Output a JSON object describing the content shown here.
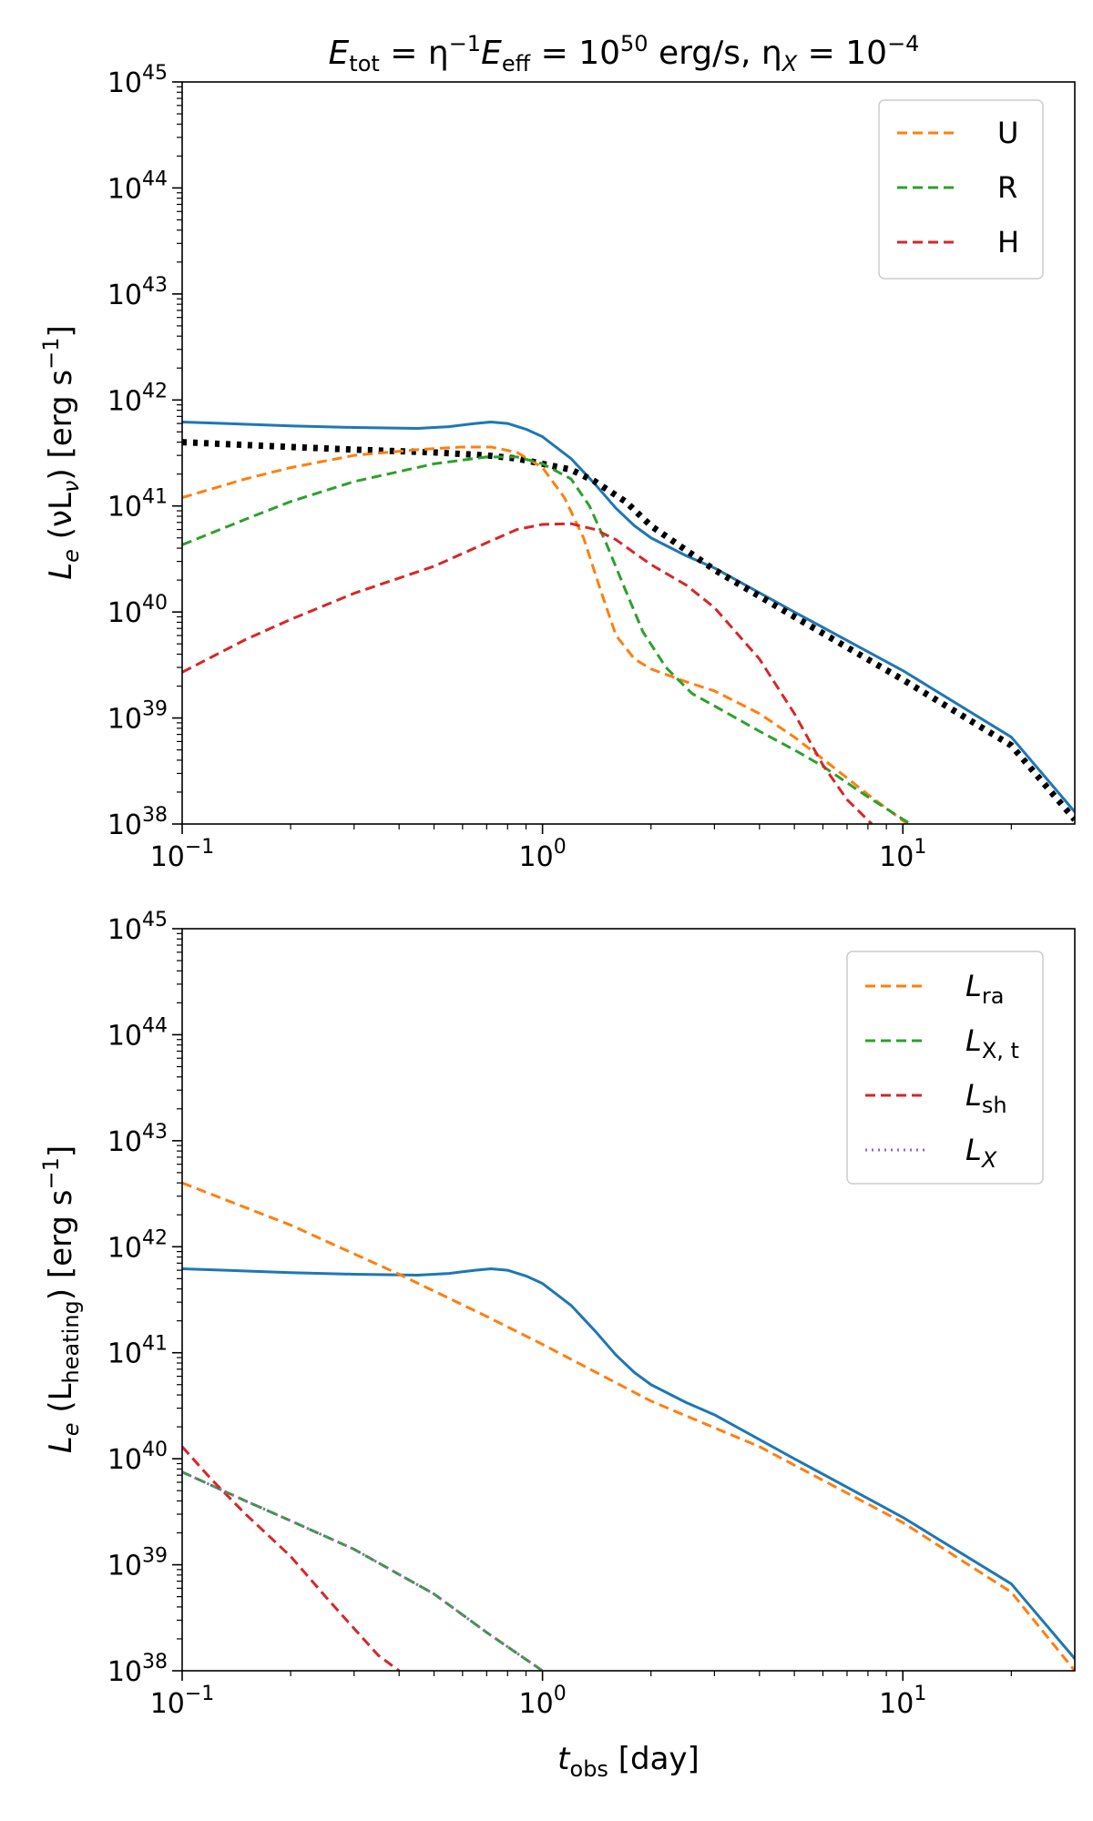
{
  "colors": {
    "blue": "#1f77b4",
    "orange": "#ff7f0e",
    "green": "#2ca02c",
    "red": "#d62728",
    "purple": "#9467bd",
    "black": "#000000"
  },
  "chart_data": [
    {
      "type": "line",
      "title_parts": {
        "e": "E",
        "tot": "tot",
        "eq1": " = η",
        "m1": "−1",
        "e2": "E",
        "eff": "eff",
        "eq2": " = 10",
        "p50": "50",
        "unit": " erg/s,  η",
        "x": "X",
        "eq3": " = 10",
        "m4": "−4"
      },
      "xlabel_parts": {
        "t": "t",
        "sub": "obs",
        "rest": " [day]"
      },
      "ylabel_parts": {
        "l": "L",
        "e": "e",
        "mid": " (νL",
        "nu": "ν",
        "unit": ") [erg s",
        "exp": "−1",
        "close": "]"
      },
      "x_scale": "log",
      "y_scale": "log",
      "xlim": [
        0.1,
        30
      ],
      "ylim": [
        1e+38,
        1e+45
      ],
      "x_ticks": [
        {
          "value": 0.1,
          "base": "10",
          "exp": "−1"
        },
        {
          "value": 1,
          "base": "10",
          "exp": "0"
        },
        {
          "value": 10,
          "base": "10",
          "exp": "1"
        }
      ],
      "y_ticks": [
        {
          "value": 1e+38,
          "base": "10",
          "exp": "38"
        },
        {
          "value": 1e+39,
          "base": "10",
          "exp": "39"
        },
        {
          "value": 1e+40,
          "base": "10",
          "exp": "40"
        },
        {
          "value": 1e+41,
          "base": "10",
          "exp": "41"
        },
        {
          "value": 1e+42,
          "base": "10",
          "exp": "42"
        },
        {
          "value": 1e+43,
          "base": "10",
          "exp": "43"
        },
        {
          "value": 1e+44,
          "base": "10",
          "exp": "44"
        },
        {
          "value": 1e+45,
          "base": "10",
          "exp": "45"
        }
      ],
      "legend": {
        "position": "top-right",
        "entries": [
          {
            "label": "U",
            "color": "#ff7f0e",
            "style": "dashed"
          },
          {
            "label": "R",
            "color": "#2ca02c",
            "style": "dashed"
          },
          {
            "label": "H",
            "color": "#d62728",
            "style": "dashed"
          }
        ]
      },
      "series": [
        {
          "name": "L_e total",
          "color": "#1f77b4",
          "style": "solid",
          "in_legend": false,
          "x": [
            0.1,
            0.2,
            0.3,
            0.45,
            0.55,
            0.65,
            0.72,
            0.8,
            0.9,
            1.0,
            1.2,
            1.4,
            1.6,
            1.8,
            2.0,
            2.5,
            3,
            5,
            10,
            20,
            30
          ],
          "y": [
            6.2e+41,
            5.7e+41,
            5.5e+41,
            5.4e+41,
            5.6e+41,
            6e+41,
            6.2e+41,
            6e+41,
            5.3e+41,
            4.5e+41,
            2.8e+41,
            1.6e+41,
            9.5e+40,
            6.5e+40,
            5e+40,
            3.4e+40,
            2.6e+40,
            1e+40,
            2.8e+39,
            6.6e+38,
            1.3e+38
          ]
        },
        {
          "name": "black dotted",
          "color": "#000000",
          "style": "dotted",
          "in_legend": false,
          "x": [
            0.1,
            0.2,
            0.3,
            0.5,
            0.7,
            0.85,
            1.0,
            1.2,
            1.4,
            1.7,
            2.0,
            3,
            5,
            10,
            20,
            30
          ],
          "y": [
            4e+41,
            3.6e+41,
            3.4e+41,
            3.2e+41,
            3e+41,
            2.8e+41,
            2.5e+41,
            2.2e+41,
            1.7e+41,
            1.1e+41,
            6.5e+40,
            2.5e+40,
            9e+39,
            2.3e+39,
            5.5e+38,
            1.1e+38
          ]
        },
        {
          "name": "U",
          "color": "#ff7f0e",
          "style": "dashed",
          "in_legend": true,
          "x": [
            0.1,
            0.15,
            0.2,
            0.3,
            0.45,
            0.6,
            0.72,
            0.85,
            1.0,
            1.15,
            1.3,
            1.45,
            1.6,
            1.8,
            2.0,
            2.5,
            3,
            4,
            5,
            6,
            8,
            10.3
          ],
          "y": [
            1.2e+41,
            1.8e+41,
            2.3e+41,
            3e+41,
            3.4e+41,
            3.6e+41,
            3.6e+41,
            3.2e+41,
            2.3e+41,
            1.2e+41,
            5e+40,
            1.6e+40,
            6e+39,
            3.6e+39,
            2.9e+39,
            2.2e+39,
            1.8e+39,
            1.1e+39,
            6.6e+38,
            4.1e+38,
            1.9e+38,
            1e+38
          ]
        },
        {
          "name": "R",
          "color": "#2ca02c",
          "style": "dashed",
          "in_legend": true,
          "x": [
            0.1,
            0.15,
            0.2,
            0.3,
            0.5,
            0.7,
            0.85,
            1.0,
            1.2,
            1.35,
            1.5,
            1.7,
            1.9,
            2.2,
            2.6,
            3,
            4,
            5,
            6,
            8,
            10.5
          ],
          "y": [
            4.3e+40,
            7.5e+40,
            1.1e+41,
            1.7e+41,
            2.5e+41,
            2.9e+41,
            2.9e+41,
            2.5e+41,
            1.8e+41,
            1e+41,
            4.5e+40,
            1.6e+40,
            6.5e+39,
            3e+39,
            1.7e+39,
            1.3e+39,
            7.5e+38,
            5e+38,
            3.5e+38,
            1.8e+38,
            1e+38
          ]
        },
        {
          "name": "H",
          "color": "#d62728",
          "style": "dashed",
          "in_legend": true,
          "x": [
            0.1,
            0.15,
            0.2,
            0.3,
            0.5,
            0.7,
            0.85,
            1.0,
            1.2,
            1.4,
            1.6,
            1.8,
            2.0,
            2.5,
            3,
            4,
            5,
            6,
            7,
            8.2
          ],
          "y": [
            2.7e+39,
            5.5e+39,
            8.5e+39,
            1.5e+40,
            2.7e+40,
            4.5e+40,
            6e+40,
            6.7e+40,
            6.8e+40,
            6e+40,
            4.8e+40,
            3.6e+40,
            2.8e+40,
            1.8e+40,
            1.1e+40,
            3.6e+39,
            1.1e+39,
            3.6e+38,
            1.7e+38,
            1e+38
          ]
        }
      ]
    },
    {
      "type": "line",
      "xlabel_parts": {
        "t": "t",
        "sub": "obs",
        "rest": " [day]"
      },
      "ylabel_parts": {
        "l": "L",
        "e": "e",
        "mid": " (L",
        "sub": "heating",
        "unit": ") [erg s",
        "exp": "−1",
        "close": "]"
      },
      "x_scale": "log",
      "y_scale": "log",
      "xlim": [
        0.1,
        30
      ],
      "ylim": [
        1e+38,
        1e+45
      ],
      "x_ticks": [
        {
          "value": 0.1,
          "base": "10",
          "exp": "−1"
        },
        {
          "value": 1,
          "base": "10",
          "exp": "0"
        },
        {
          "value": 10,
          "base": "10",
          "exp": "1"
        }
      ],
      "y_ticks": [
        {
          "value": 1e+38,
          "base": "10",
          "exp": "38"
        },
        {
          "value": 1e+39,
          "base": "10",
          "exp": "39"
        },
        {
          "value": 1e+40,
          "base": "10",
          "exp": "40"
        },
        {
          "value": 1e+41,
          "base": "10",
          "exp": "41"
        },
        {
          "value": 1e+42,
          "base": "10",
          "exp": "42"
        },
        {
          "value": 1e+43,
          "base": "10",
          "exp": "43"
        },
        {
          "value": 1e+44,
          "base": "10",
          "exp": "44"
        },
        {
          "value": 1e+45,
          "base": "10",
          "exp": "45"
        }
      ],
      "legend": {
        "position": "top-right",
        "entries": [
          {
            "label": "L",
            "sub": "ra",
            "color": "#ff7f0e",
            "style": "dashed"
          },
          {
            "label": "L",
            "sub": "X, t",
            "color": "#2ca02c",
            "style": "dashed"
          },
          {
            "label": "L",
            "sub": "sh",
            "color": "#d62728",
            "style": "dashed"
          },
          {
            "label": "L",
            "sub": "X",
            "color": "#9467bd",
            "style": "dotted"
          }
        ]
      },
      "series": [
        {
          "name": "L_e total",
          "color": "#1f77b4",
          "style": "solid",
          "in_legend": false,
          "x": [
            0.1,
            0.2,
            0.3,
            0.45,
            0.55,
            0.65,
            0.72,
            0.8,
            0.9,
            1.0,
            1.2,
            1.4,
            1.6,
            1.8,
            2.0,
            2.5,
            3,
            5,
            10,
            20,
            30
          ],
          "y": [
            6.2e+41,
            5.7e+41,
            5.5e+41,
            5.4e+41,
            5.6e+41,
            6e+41,
            6.2e+41,
            6e+41,
            5.3e+41,
            4.5e+41,
            2.8e+41,
            1.6e+41,
            9.5e+40,
            6.5e+40,
            5e+40,
            3.4e+40,
            2.6e+40,
            1e+40,
            2.8e+39,
            6.6e+38,
            1.3e+38
          ]
        },
        {
          "name": "L_ra",
          "color": "#ff7f0e",
          "style": "dashed",
          "in_legend": true,
          "x": [
            0.1,
            0.2,
            0.4,
            0.7,
            1.0,
            2.0,
            4,
            10,
            20,
            30
          ],
          "y": [
            4e+42,
            1.6e+42,
            5.5e+41,
            2.2e+41,
            1.2e+41,
            3.5e+40,
            1.3e+40,
            2.5e+39,
            5.5e+38,
            1e+38
          ]
        },
        {
          "name": "L_X,t",
          "color": "#2ca02c",
          "style": "dashed",
          "in_legend": true,
          "x": [
            0.1,
            0.15,
            0.2,
            0.3,
            0.5,
            0.7,
            1.0
          ],
          "y": [
            7.5e+39,
            4e+39,
            2.6e+39,
            1.4e+39,
            5.3e+38,
            2.3e+38,
            1e+38
          ]
        },
        {
          "name": "L_sh",
          "color": "#d62728",
          "style": "dashed",
          "in_legend": true,
          "x": [
            0.1,
            0.12,
            0.15,
            0.2,
            0.25,
            0.3,
            0.35,
            0.4
          ],
          "y": [
            1.3e+40,
            6.5e+39,
            3e+39,
            1.2e+39,
            5e+38,
            2.5e+38,
            1.4e+38,
            1e+38
          ]
        },
        {
          "name": "L_X",
          "color": "#9467bd",
          "style": "dotted",
          "in_legend": true,
          "x": [
            0.1,
            0.15,
            0.2,
            0.3,
            0.5,
            0.7,
            1.0
          ],
          "y": [
            7.5e+39,
            4e+39,
            2.6e+39,
            1.4e+39,
            5.3e+38,
            2.3e+38,
            1e+38
          ]
        }
      ]
    }
  ]
}
